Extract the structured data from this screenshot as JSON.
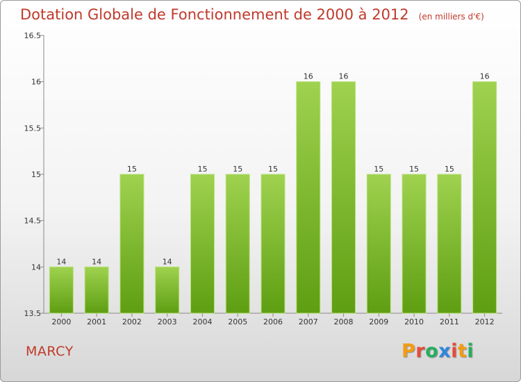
{
  "title": "Dotation Globale de Fonctionnement de 2000 à 2012",
  "subtitle": "(en milliers d'€)",
  "location": "MARCY",
  "logo": {
    "text": "Proxiti",
    "colors": [
      "#f39c12",
      "#e74c3c",
      "#27ae60",
      "#2e86de",
      "#e74c3c",
      "#f39c12",
      "#27ae60"
    ]
  },
  "chart_data": {
    "type": "bar",
    "categories": [
      "2000",
      "2001",
      "2002",
      "2003",
      "2004",
      "2005",
      "2006",
      "2007",
      "2008",
      "2009",
      "2010",
      "2011",
      "2012"
    ],
    "values": [
      14,
      14,
      15,
      14,
      15,
      15,
      15,
      16,
      16,
      15,
      15,
      15,
      16
    ],
    "labels": [
      "14",
      "14",
      "15",
      "14",
      "15",
      "15",
      "15",
      "16",
      "16",
      "15",
      "15",
      "15",
      "16"
    ],
    "ylim": [
      13.5,
      16.5
    ],
    "yticks": [
      13.5,
      14,
      14.5,
      15,
      15.5,
      16,
      16.5
    ],
    "ytick_labels": [
      "13.5",
      "14",
      "14.5",
      "15",
      "15.5",
      "16",
      "16.5"
    ],
    "bar_color_top": "#9fd24f",
    "bar_color_bottom": "#5e9e12",
    "grid": false
  }
}
